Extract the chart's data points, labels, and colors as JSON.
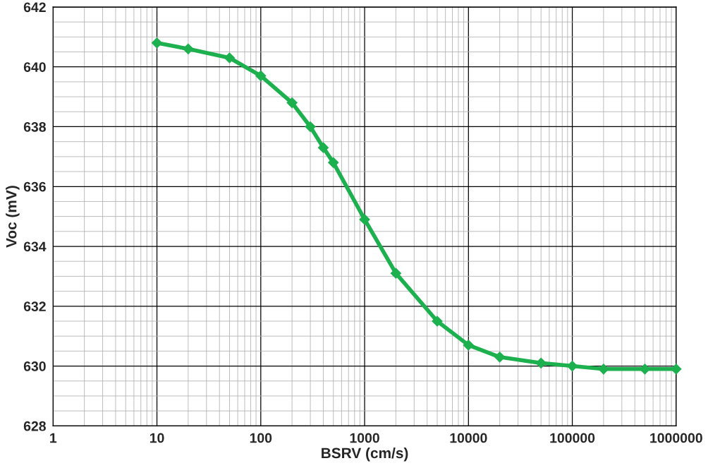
{
  "chart_data": {
    "type": "line",
    "xlabel": "BSRV (cm/s)",
    "ylabel": "Voc (mV)",
    "x": [
      10,
      20,
      50,
      100,
      200,
      300,
      400,
      500,
      1000,
      2000,
      5000,
      10000,
      20000,
      50000,
      100000,
      200000,
      500000,
      1000000
    ],
    "series": [
      {
        "color": "#1db04e",
        "values": [
          640.8,
          640.6,
          640.3,
          639.7,
          638.8,
          638.0,
          637.3,
          636.8,
          634.9,
          633.1,
          631.5,
          630.7,
          630.3,
          630.1,
          630.0,
          629.9,
          629.9,
          629.9
        ]
      }
    ],
    "log": "x",
    "xlim": [
      1,
      1000000
    ],
    "xticks": [
      1,
      10,
      100,
      1000,
      10000,
      100000,
      1000000
    ],
    "ylim": [
      628,
      642
    ],
    "yticks": [
      628,
      630,
      632,
      634,
      636,
      638,
      640,
      642
    ],
    "grid": true,
    "marker": "diamond",
    "line_style": "solid",
    "legend": false
  }
}
